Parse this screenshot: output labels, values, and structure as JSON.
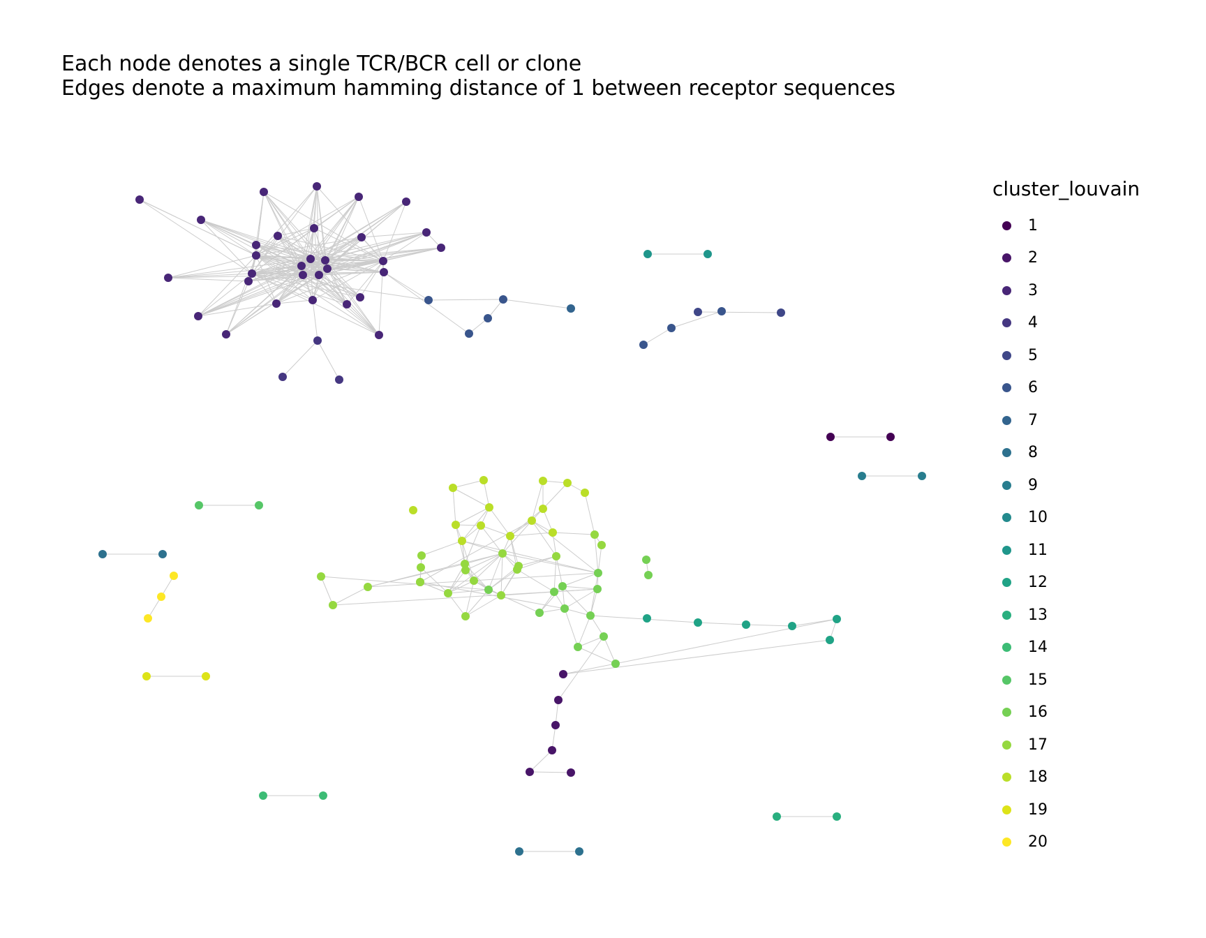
{
  "title": {
    "line1": "Each node denotes a single TCR/BCR cell or clone",
    "line2": "Edges denote a maximum hamming distance of 1 between receptor sequences"
  },
  "legend": {
    "title": "cluster_louvain",
    "items": [
      {
        "label": "1",
        "color": "#440154"
      },
      {
        "label": "2",
        "color": "#481568"
      },
      {
        "label": "3",
        "color": "#482677"
      },
      {
        "label": "4",
        "color": "#453781"
      },
      {
        "label": "5",
        "color": "#3F4788"
      },
      {
        "label": "6",
        "color": "#39558C"
      },
      {
        "label": "7",
        "color": "#32648E"
      },
      {
        "label": "8",
        "color": "#2D718E"
      },
      {
        "label": "9",
        "color": "#287D8E"
      },
      {
        "label": "10",
        "color": "#238A8D"
      },
      {
        "label": "11",
        "color": "#1F968B"
      },
      {
        "label": "12",
        "color": "#20A386"
      },
      {
        "label": "13",
        "color": "#29AF7F"
      },
      {
        "label": "14",
        "color": "#3CBC75"
      },
      {
        "label": "15",
        "color": "#56C667"
      },
      {
        "label": "16",
        "color": "#75D054"
      },
      {
        "label": "17",
        "color": "#95D840"
      },
      {
        "label": "18",
        "color": "#BADE28"
      },
      {
        "label": "19",
        "color": "#DDE318"
      },
      {
        "label": "20",
        "color": "#FDE725"
      }
    ]
  },
  "edge_color": "#cccccc"
}
